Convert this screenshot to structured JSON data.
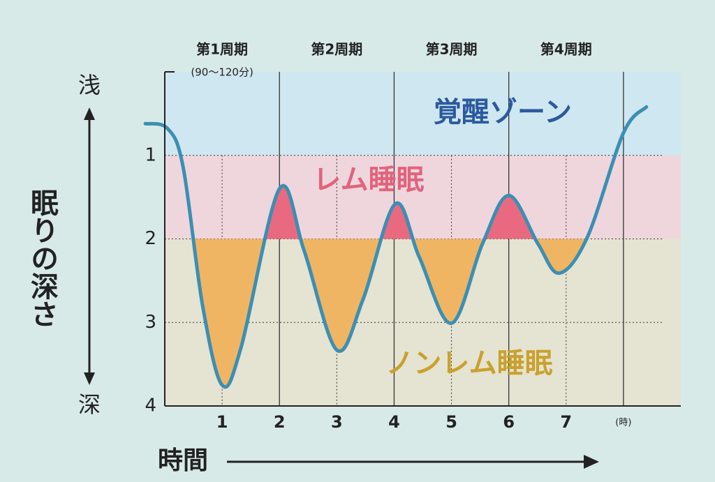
{
  "chart_data": {
    "type": "line",
    "y_label": "眠りの深さ",
    "y_top_label": "浅",
    "y_bottom_label": "深",
    "x_label": "時間",
    "x": [
      -0.34,
      0.05,
      0.32,
      0.66,
      1.0,
      1.33,
      2.0,
      2.43,
      3.0,
      3.46,
      4.02,
      4.44,
      5.0,
      5.54,
      6.0,
      6.51,
      6.88,
      7.37,
      8.0,
      8.4
    ],
    "series": [
      {
        "color": "#3b8fb3",
        "values": [
          0.62,
          0.68,
          1.14,
          2.8,
          3.75,
          3.3,
          1.4,
          2.14,
          3.33,
          2.72,
          1.58,
          2.22,
          3.01,
          2.06,
          1.48,
          2.06,
          2.41,
          1.98,
          0.73,
          0.42
        ]
      }
    ],
    "xlim": [
      0,
      9
    ],
    "ylim": [
      4,
      0
    ],
    "xticks": [
      1,
      2,
      3,
      4,
      5,
      6,
      7,
      {
        "value": 8,
        "label": "(時)"
      }
    ],
    "yticks": [
      1,
      2,
      3,
      4
    ],
    "zones": [
      {
        "label": "覚醒ゾーン",
        "from": 0,
        "to": 1,
        "color": "#cfe7f0",
        "text_color": "#2b5a9e"
      },
      {
        "label": "レム睡眠",
        "from": 1,
        "to": 2,
        "color": "#efd6dd",
        "text_color": "#e2637b"
      },
      {
        "label": "ノンレム睡眠",
        "from": 2,
        "to": 4,
        "color": "#e5e3d1",
        "text_color": "#c9a12d"
      }
    ],
    "rem_fill": "#e96a80",
    "nonrem_fill": "#f0b563",
    "cycles": [
      {
        "label": "第1周期",
        "sub": "(90〜120分)"
      },
      {
        "label": "第2周期"
      },
      {
        "label": "第3周期"
      },
      {
        "label": "第4周期"
      }
    ]
  }
}
